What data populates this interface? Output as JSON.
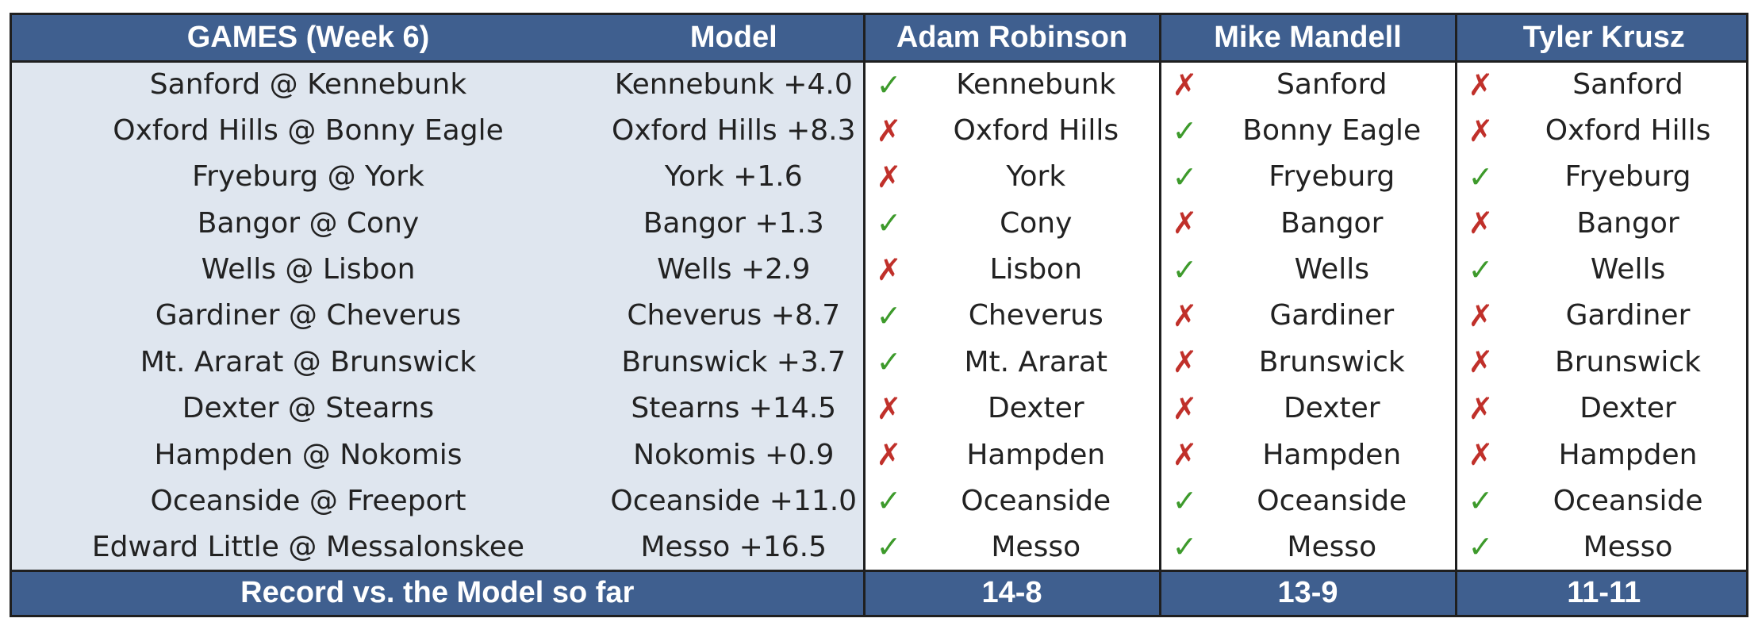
{
  "headers": {
    "games": "GAMES (Week 6)",
    "model": "Model",
    "pickers": [
      "Adam Robinson",
      "Mike Mandell",
      "Tyler Krusz"
    ]
  },
  "marks": {
    "correct": "✓",
    "wrong": "✗"
  },
  "colors": {
    "header_bg": "#3f5f8f",
    "left_bg": "#dfe6ef",
    "correct": "#3d9a2b",
    "wrong": "#c0302a"
  },
  "rows": [
    {
      "game": "Sanford @ Kennebunk",
      "model": "Kennebunk +4.0",
      "picks": [
        {
          "mark": "correct",
          "team": "Kennebunk"
        },
        {
          "mark": "wrong",
          "team": "Sanford"
        },
        {
          "mark": "wrong",
          "team": "Sanford"
        }
      ]
    },
    {
      "game": "Oxford Hills @ Bonny Eagle",
      "model": "Oxford Hills +8.3",
      "picks": [
        {
          "mark": "wrong",
          "team": "Oxford Hills"
        },
        {
          "mark": "correct",
          "team": "Bonny Eagle"
        },
        {
          "mark": "wrong",
          "team": "Oxford Hills"
        }
      ]
    },
    {
      "game": "Fryeburg @ York",
      "model": "York +1.6",
      "picks": [
        {
          "mark": "wrong",
          "team": "York"
        },
        {
          "mark": "correct",
          "team": "Fryeburg"
        },
        {
          "mark": "correct",
          "team": "Fryeburg"
        }
      ]
    },
    {
      "game": "Bangor @ Cony",
      "model": "Bangor +1.3",
      "picks": [
        {
          "mark": "correct",
          "team": "Cony"
        },
        {
          "mark": "wrong",
          "team": "Bangor"
        },
        {
          "mark": "wrong",
          "team": "Bangor"
        }
      ]
    },
    {
      "game": "Wells @ Lisbon",
      "model": "Wells +2.9",
      "picks": [
        {
          "mark": "wrong",
          "team": "Lisbon"
        },
        {
          "mark": "correct",
          "team": "Wells"
        },
        {
          "mark": "correct",
          "team": "Wells"
        }
      ]
    },
    {
      "game": "Gardiner @ Cheverus",
      "model": "Cheverus +8.7",
      "picks": [
        {
          "mark": "correct",
          "team": "Cheverus"
        },
        {
          "mark": "wrong",
          "team": "Gardiner"
        },
        {
          "mark": "wrong",
          "team": "Gardiner"
        }
      ]
    },
    {
      "game": "Mt. Ararat @ Brunswick",
      "model": "Brunswick +3.7",
      "picks": [
        {
          "mark": "correct",
          "team": "Mt. Ararat"
        },
        {
          "mark": "wrong",
          "team": "Brunswick"
        },
        {
          "mark": "wrong",
          "team": "Brunswick"
        }
      ]
    },
    {
      "game": "Dexter @ Stearns",
      "model": "Stearns +14.5",
      "picks": [
        {
          "mark": "wrong",
          "team": "Dexter"
        },
        {
          "mark": "wrong",
          "team": "Dexter"
        },
        {
          "mark": "wrong",
          "team": "Dexter"
        }
      ]
    },
    {
      "game": "Hampden @ Nokomis",
      "model": "Nokomis +0.9",
      "picks": [
        {
          "mark": "wrong",
          "team": "Hampden"
        },
        {
          "mark": "wrong",
          "team": "Hampden"
        },
        {
          "mark": "wrong",
          "team": "Hampden"
        }
      ]
    },
    {
      "game": "Oceanside @ Freeport",
      "model": "Oceanside +11.0",
      "picks": [
        {
          "mark": "correct",
          "team": "Oceanside"
        },
        {
          "mark": "correct",
          "team": "Oceanside"
        },
        {
          "mark": "correct",
          "team": "Oceanside"
        }
      ]
    },
    {
      "game": "Edward Little @ Messalonskee",
      "model": "Messo +16.5",
      "picks": [
        {
          "mark": "correct",
          "team": "Messo"
        },
        {
          "mark": "correct",
          "team": "Messo"
        },
        {
          "mark": "correct",
          "team": "Messo"
        }
      ]
    }
  ],
  "footer": {
    "label": "Record vs. the Model so far",
    "records": [
      "14-8",
      "13-9",
      "11-11"
    ]
  }
}
